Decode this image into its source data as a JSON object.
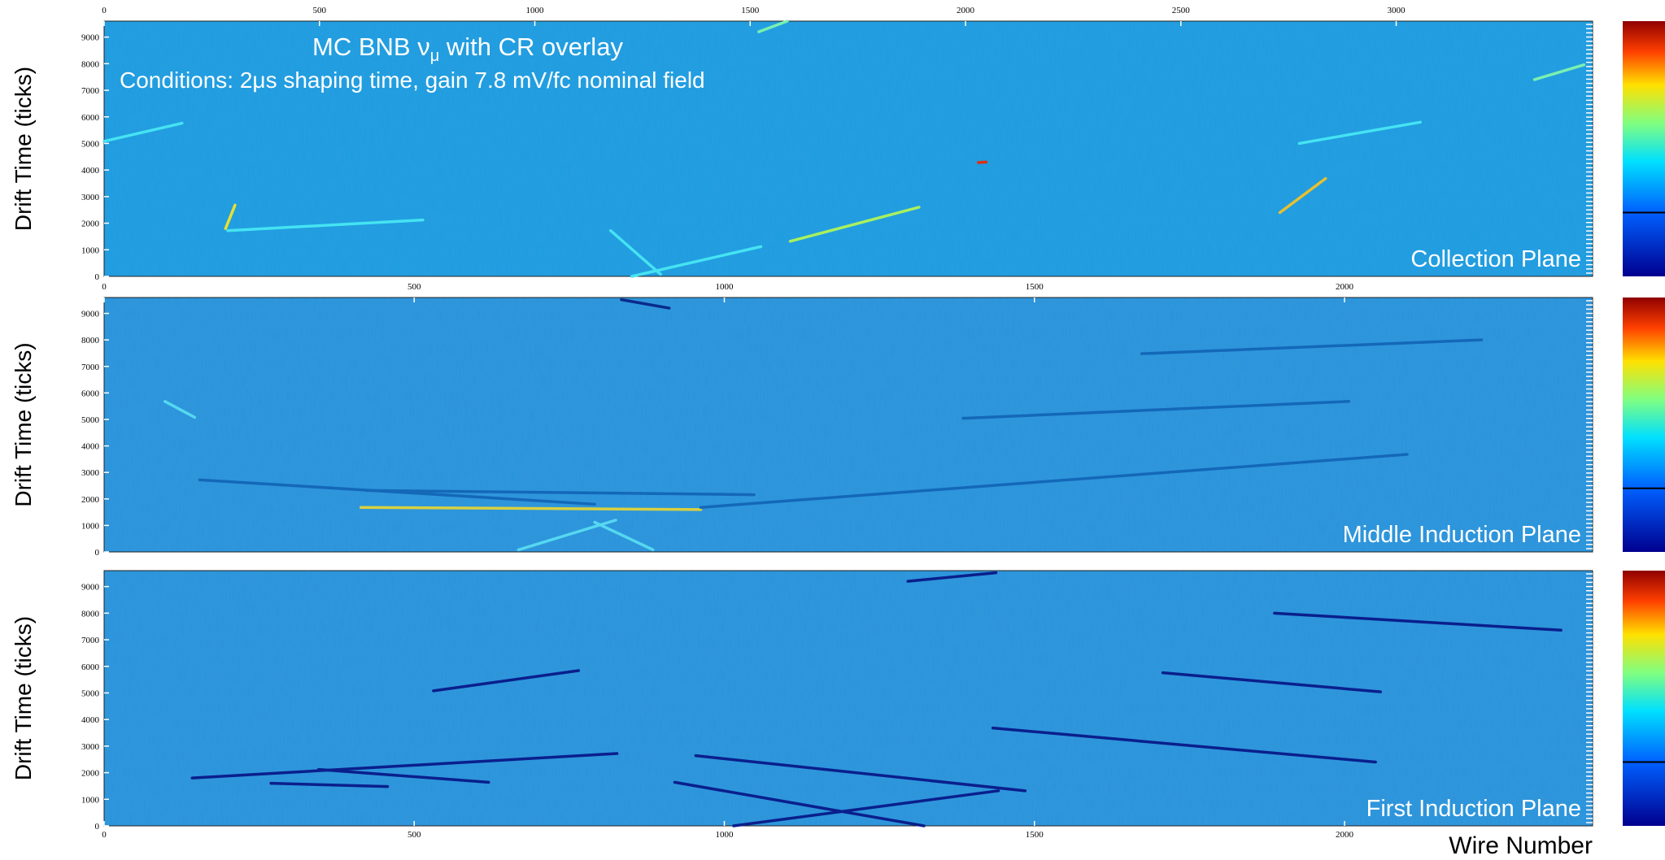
{
  "chart_data": [
    {
      "type": "line",
      "title": "MC BNB ν",
      "title_subscript": "μ",
      "title_rest": " with CR overlay",
      "subtitle": "Conditions: 2μs shaping time, gain 7.8 mV/fc nominal field",
      "ylabel": "Drift Time (ticks)",
      "panel_label": "Collection Plane",
      "background": "#1c9de0",
      "xlim": [
        0,
        3456
      ],
      "xticks": [
        0,
        500,
        1000,
        1500,
        2000,
        2500,
        3000
      ],
      "ylim": [
        0,
        9600
      ],
      "yticks": [
        0,
        1000,
        2000,
        3000,
        4000,
        5000,
        6000,
        7000,
        8000,
        9000
      ],
      "series": [
        {
          "color": "#45e3f2",
          "x": [
            0,
            181
          ],
          "values": [
            5080,
            5760
          ]
        },
        {
          "color": "#45e3f2",
          "x": [
            287,
            740
          ],
          "values": [
            1720,
            2120
          ]
        },
        {
          "color": "#e8e030",
          "x": [
            282,
            304
          ],
          "values": [
            1800,
            2680
          ]
        },
        {
          "color": "#45e3f2",
          "x": [
            1225,
            1525
          ],
          "values": [
            0,
            1120
          ]
        },
        {
          "color": "#45e3f2",
          "x": [
            1176,
            1292
          ],
          "values": [
            1720,
            80
          ]
        },
        {
          "color": "#a8f060",
          "x": [
            1593,
            1892
          ],
          "values": [
            1320,
            2600
          ]
        },
        {
          "color": "#e8c030",
          "x": [
            2730,
            2836
          ],
          "values": [
            2400,
            3680
          ]
        },
        {
          "color": "#45e3f2",
          "x": [
            2775,
            3056
          ],
          "values": [
            5000,
            5800
          ]
        },
        {
          "color": "#7af0b0",
          "x": [
            3321,
            3436
          ],
          "values": [
            7400,
            7960
          ]
        },
        {
          "color": "#7af0b0",
          "x": [
            1520,
            1586
          ],
          "values": [
            9200,
            9600
          ]
        },
        {
          "color": "#e03010",
          "x": [
            2030,
            2048
          ],
          "values": [
            4280,
            4300
          ]
        }
      ]
    },
    {
      "type": "line",
      "ylabel": "Drift Time (ticks)",
      "panel_label": "Middle Induction Plane",
      "background": "#2a93da",
      "xlim": [
        0,
        2400
      ],
      "xticks": [
        0,
        500,
        1000,
        1500,
        2000
      ],
      "ylim": [
        0,
        9600
      ],
      "yticks": [
        0,
        1000,
        2000,
        3000,
        4000,
        5000,
        6000,
        7000,
        8000,
        9000
      ],
      "series": [
        {
          "color": "#1468b8",
          "x": [
            423,
            1048
          ],
          "values": [
            2320,
            2160
          ]
        },
        {
          "color": "#1468b8",
          "x": [
            154,
            791
          ],
          "values": [
            2720,
            1800
          ]
        },
        {
          "color": "#d8d040",
          "x": [
            414,
            962
          ],
          "values": [
            1680,
            1600
          ]
        },
        {
          "color": "#1468b8",
          "x": [
            962,
            2101
          ],
          "values": [
            1680,
            3680
          ]
        },
        {
          "color": "#1468b8",
          "x": [
            1385,
            2007
          ],
          "values": [
            5040,
            5680
          ]
        },
        {
          "color": "#1468b8",
          "x": [
            1673,
            2221
          ],
          "values": [
            7480,
            8000
          ]
        },
        {
          "color": "#55d8f0",
          "x": [
            668,
            825
          ],
          "values": [
            80,
            1200
          ]
        },
        {
          "color": "#55d8f0",
          "x": [
            791,
            885
          ],
          "values": [
            1120,
            80
          ]
        },
        {
          "color": "#55d8f0",
          "x": [
            98,
            146
          ],
          "values": [
            5680,
            5080
          ]
        },
        {
          "color": "#0a2a8c",
          "x": [
            834,
            911
          ],
          "values": [
            9520,
            9200
          ]
        }
      ]
    },
    {
      "type": "line",
      "ylabel": "Drift Time (ticks)",
      "panel_label": "First Induction Plane",
      "xlabel": "Wire Number",
      "background": "#2a93da",
      "xlim": [
        0,
        2400
      ],
      "xticks": [
        0,
        500,
        1000,
        1500,
        2000
      ],
      "ylim": [
        0,
        9600
      ],
      "yticks": [
        0,
        1000,
        2000,
        3000,
        4000,
        5000,
        6000,
        7000,
        8000,
        9000
      ],
      "series": [
        {
          "color": "#0a1f8c",
          "x": [
            142,
            827
          ],
          "values": [
            1800,
            2720
          ]
        },
        {
          "color": "#0a1f8c",
          "x": [
            269,
            457
          ],
          "values": [
            1600,
            1480
          ]
        },
        {
          "color": "#0a1f8c",
          "x": [
            346,
            620
          ],
          "values": [
            2120,
            1640
          ]
        },
        {
          "color": "#0a1f8c",
          "x": [
            531,
            765
          ],
          "values": [
            5080,
            5840
          ]
        },
        {
          "color": "#0a1f8c",
          "x": [
            954,
            1485
          ],
          "values": [
            2640,
            1320
          ]
        },
        {
          "color": "#0a1f8c",
          "x": [
            920,
            1322
          ],
          "values": [
            1640,
            0
          ]
        },
        {
          "color": "#0a1f8c",
          "x": [
            1015,
            1442
          ],
          "values": [
            0,
            1320
          ]
        },
        {
          "color": "#0a1f8c",
          "x": [
            1433,
            2050
          ],
          "values": [
            3680,
            2400
          ]
        },
        {
          "color": "#0a1f8c",
          "x": [
            1707,
            2058
          ],
          "values": [
            5760,
            5040
          ]
        },
        {
          "color": "#0a1f8c",
          "x": [
            1887,
            2349
          ],
          "values": [
            8000,
            7360
          ]
        },
        {
          "color": "#0a1f8c",
          "x": [
            1296,
            1438
          ],
          "values": [
            9200,
            9520
          ]
        }
      ]
    }
  ]
}
